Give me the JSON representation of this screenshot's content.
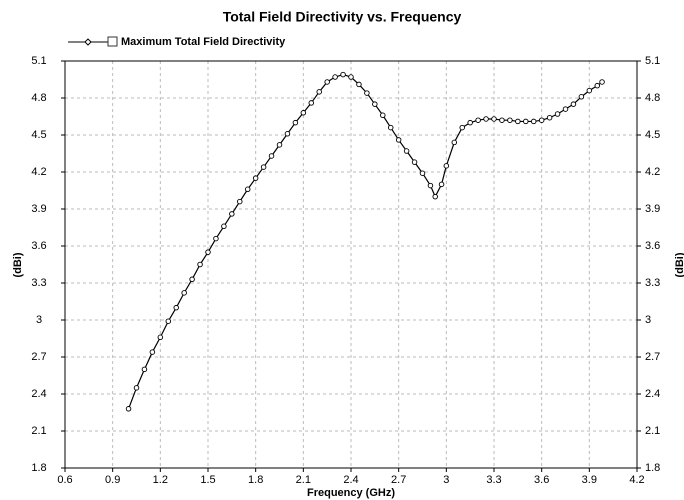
{
  "chart_data": {
    "type": "line",
    "title": "Total Field Directivity vs. Frequency",
    "xlabel": "Frequency (GHz)",
    "ylabel": "(dBi)",
    "y2label": "(dBi)",
    "x": [
      1.0,
      1.05,
      1.1,
      1.15,
      1.2,
      1.25,
      1.3,
      1.35,
      1.4,
      1.45,
      1.5,
      1.55,
      1.6,
      1.65,
      1.7,
      1.75,
      1.8,
      1.85,
      1.9,
      1.95,
      2.0,
      2.05,
      2.1,
      2.15,
      2.2,
      2.25,
      2.3,
      2.35,
      2.4,
      2.45,
      2.5,
      2.55,
      2.6,
      2.65,
      2.7,
      2.75,
      2.8,
      2.85,
      2.9,
      2.93,
      2.97,
      3.0,
      3.05,
      3.1,
      3.15,
      3.2,
      3.25,
      3.3,
      3.35,
      3.4,
      3.45,
      3.5,
      3.55,
      3.6,
      3.65,
      3.7,
      3.75,
      3.8,
      3.85,
      3.9,
      3.95,
      3.98
    ],
    "series": [
      {
        "name": "Maximum Total Field Directivity",
        "color": "#000000",
        "values": [
          2.28,
          2.45,
          2.6,
          2.74,
          2.86,
          2.99,
          3.1,
          3.22,
          3.33,
          3.45,
          3.55,
          3.66,
          3.76,
          3.86,
          3.96,
          4.06,
          4.15,
          4.24,
          4.33,
          4.42,
          4.51,
          4.6,
          4.68,
          4.76,
          4.85,
          4.93,
          4.97,
          4.99,
          4.97,
          4.91,
          4.84,
          4.75,
          4.66,
          4.56,
          4.46,
          4.37,
          4.28,
          4.19,
          4.09,
          4.0,
          4.1,
          4.25,
          4.44,
          4.56,
          4.6,
          4.62,
          4.63,
          4.63,
          4.62,
          4.62,
          4.61,
          4.61,
          4.61,
          4.62,
          4.64,
          4.67,
          4.71,
          4.75,
          4.81,
          4.86,
          4.9,
          4.93
        ]
      }
    ],
    "xlim": [
      0.6,
      4.2
    ],
    "xticks": [
      0.6,
      0.9,
      1.2,
      1.5,
      1.8,
      2.1,
      2.4,
      2.7,
      3,
      3.3,
      3.6,
      3.9,
      4.2
    ],
    "ylim": [
      1.8,
      5.1
    ],
    "yticks": [
      1.8,
      2.1,
      2.4,
      2.7,
      3,
      3.3,
      3.6,
      3.9,
      4.2,
      4.5,
      4.8,
      5.1
    ],
    "y2lim": [
      1.8,
      5.1
    ],
    "y2ticks": [
      1.8,
      2.1,
      2.4,
      2.7,
      3,
      3.3,
      3.6,
      3.9,
      4.2,
      4.5,
      4.8,
      5.1
    ],
    "grid": true,
    "legend": "top-left"
  }
}
